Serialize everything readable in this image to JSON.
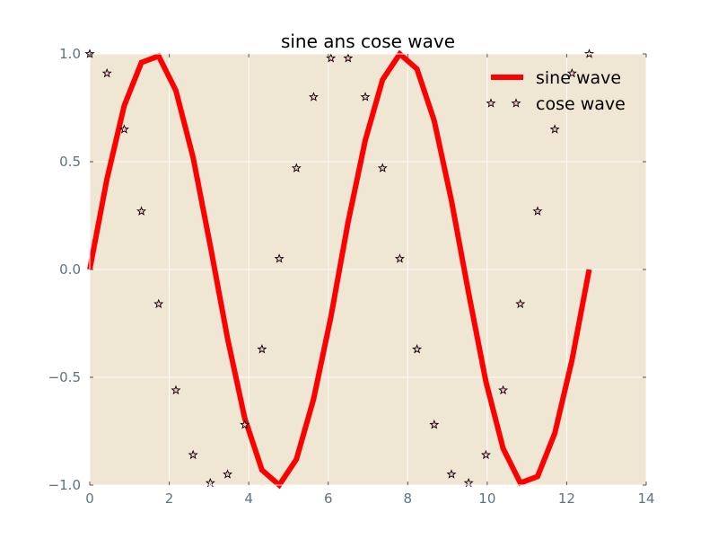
{
  "chart_data": {
    "type": "line",
    "title": "sine ans cose wave",
    "xlabel": "",
    "ylabel": "",
    "xlim": [
      0,
      14
    ],
    "ylim": [
      -1.0,
      1.0
    ],
    "xticks": [
      "0",
      "2",
      "4",
      "6",
      "8",
      "10",
      "12",
      "14"
    ],
    "yticks": [
      "1.0",
      "0.5",
      "0.0",
      "−0.5",
      "−1.0"
    ],
    "grid": true,
    "legend_position": "top-right",
    "background_color": "#efe6d3",
    "series": [
      {
        "name": "sine wave",
        "style": "line",
        "color": "#ff0000",
        "x": [
          0.0,
          0.433,
          0.867,
          1.3,
          1.733,
          2.167,
          2.6,
          3.033,
          3.467,
          3.9,
          4.333,
          4.767,
          5.2,
          5.633,
          6.067,
          6.5,
          6.933,
          7.367,
          7.8,
          8.233,
          8.667,
          9.1,
          9.533,
          9.967,
          10.4,
          10.833,
          11.267,
          11.7,
          12.133,
          12.566
        ],
        "y": [
          0.0,
          0.42,
          0.76,
          0.96,
          0.99,
          0.83,
          0.52,
          0.11,
          -0.32,
          -0.69,
          -0.93,
          -1.0,
          -0.88,
          -0.6,
          -0.22,
          0.22,
          0.6,
          0.88,
          1.0,
          0.93,
          0.69,
          0.32,
          -0.11,
          -0.52,
          -0.83,
          -0.99,
          -0.96,
          -0.76,
          -0.42,
          0.0
        ]
      },
      {
        "name": "cose wave",
        "style": "star-markers",
        "color": "#000000",
        "marker_fill": "#ffc0cb",
        "x": [
          0.0,
          0.433,
          0.867,
          1.3,
          1.733,
          2.167,
          2.6,
          3.033,
          3.467,
          3.9,
          4.333,
          4.767,
          5.2,
          5.633,
          6.067,
          6.5,
          6.933,
          7.367,
          7.8,
          8.233,
          8.667,
          9.1,
          9.533,
          9.967,
          10.4,
          10.833,
          11.267,
          11.7,
          12.133,
          12.566
        ],
        "y": [
          1.0,
          0.91,
          0.65,
          0.27,
          -0.16,
          -0.56,
          -0.86,
          -0.99,
          -0.95,
          -0.72,
          -0.37,
          0.05,
          0.47,
          0.8,
          0.98,
          0.98,
          0.8,
          0.47,
          0.05,
          -0.37,
          -0.72,
          -0.95,
          -0.99,
          -0.86,
          -0.56,
          -0.16,
          0.27,
          0.65,
          0.91,
          1.0
        ]
      }
    ]
  }
}
